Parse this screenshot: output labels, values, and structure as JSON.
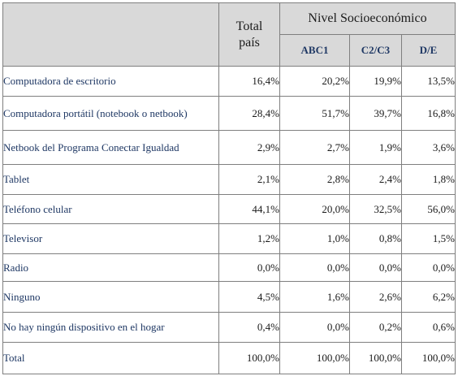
{
  "header": {
    "total_line1": "Total",
    "total_line2": "país",
    "group": "Nivel Socioeconómico",
    "sub": [
      "ABC1",
      "C2/C3",
      "D/E"
    ]
  },
  "rows": [
    {
      "label": "Computadora de escritorio",
      "values": [
        "16,4%",
        "20,2%",
        "19,9%",
        "13,5%"
      ]
    },
    {
      "label": "Computadora portátil (notebook o netbook)",
      "values": [
        "28,4%",
        "51,7%",
        "39,7%",
        "16,8%"
      ]
    },
    {
      "label": "Netbook del Programa Conectar Igualdad",
      "values": [
        "2,9%",
        "2,7%",
        "1,9%",
        "3,6%"
      ]
    },
    {
      "label": "Tablet",
      "values": [
        "2,1%",
        "2,8%",
        "2,4%",
        "1,8%"
      ]
    },
    {
      "label": "Teléfono celular",
      "values": [
        "44,1%",
        "20,0%",
        "32,5%",
        "56,0%"
      ]
    },
    {
      "label": "Televisor",
      "values": [
        "1,2%",
        "1,0%",
        "0,8%",
        "1,5%"
      ]
    },
    {
      "label": "Radio",
      "values": [
        "0,0%",
        "0,0%",
        "0,0%",
        "0,0%"
      ]
    },
    {
      "label": "Ninguno",
      "values": [
        "4,5%",
        "1,6%",
        "2,6%",
        "6,2%"
      ]
    },
    {
      "label": "No hay ningún dispositivo en el hogar",
      "values": [
        "0,4%",
        "0,0%",
        "0,2%",
        "0,6%"
      ]
    },
    {
      "label": "Total",
      "values": [
        "100,0%",
        "100,0%",
        "100,0%",
        "100,0%"
      ]
    }
  ]
}
